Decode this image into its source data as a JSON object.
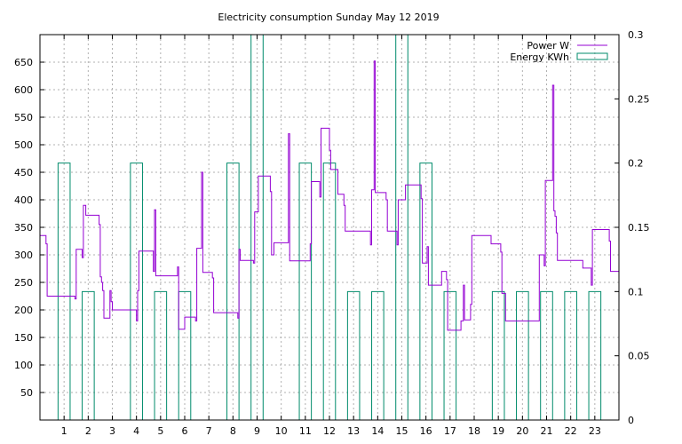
{
  "chart_data": {
    "type": "line",
    "title": "Electricity consumption Sunday May 12 2019",
    "xlabel": "",
    "ylabel": "",
    "xlim": [
      0,
      24
    ],
    "ylim": [
      0,
      700
    ],
    "y2lim": [
      0,
      0.3
    ],
    "grid": true,
    "legend_position": "top-right",
    "x_ticks": [
      1,
      2,
      3,
      4,
      5,
      6,
      7,
      8,
      9,
      10,
      11,
      12,
      13,
      14,
      15,
      16,
      17,
      18,
      19,
      20,
      21,
      22,
      23
    ],
    "y_ticks": [
      50,
      100,
      150,
      200,
      250,
      300,
      350,
      400,
      450,
      500,
      550,
      600,
      650
    ],
    "y2_ticks": [
      "0",
      "0.05",
      "0.1",
      "0.15",
      "0.2",
      "0.25",
      "0.3"
    ],
    "series": [
      {
        "name": "Power W",
        "axis": "left",
        "color": "#9400d3",
        "style": "steps",
        "points": [
          [
            0,
            335
          ],
          [
            0.25,
            335
          ],
          [
            0.25,
            320
          ],
          [
            0.3,
            320
          ],
          [
            0.3,
            225
          ],
          [
            1.45,
            225
          ],
          [
            1.45,
            220
          ],
          [
            1.5,
            220
          ],
          [
            1.5,
            310
          ],
          [
            1.75,
            310
          ],
          [
            1.75,
            295
          ],
          [
            1.8,
            295
          ],
          [
            1.8,
            390
          ],
          [
            1.9,
            390
          ],
          [
            1.9,
            372
          ],
          [
            2.45,
            372
          ],
          [
            2.45,
            355
          ],
          [
            2.5,
            355
          ],
          [
            2.5,
            260
          ],
          [
            2.55,
            260
          ],
          [
            2.55,
            250
          ],
          [
            2.6,
            250
          ],
          [
            2.6,
            235
          ],
          [
            2.65,
            235
          ],
          [
            2.65,
            185
          ],
          [
            2.9,
            185
          ],
          [
            2.9,
            235
          ],
          [
            2.95,
            235
          ],
          [
            2.95,
            215
          ],
          [
            3.0,
            215
          ],
          [
            3.0,
            200
          ],
          [
            4.0,
            200
          ],
          [
            4.0,
            180
          ],
          [
            4.05,
            180
          ],
          [
            4.05,
            235
          ],
          [
            4.1,
            235
          ],
          [
            4.1,
            307
          ],
          [
            4.7,
            307
          ],
          [
            4.7,
            270
          ],
          [
            4.75,
            270
          ],
          [
            4.75,
            382
          ],
          [
            4.8,
            382
          ],
          [
            4.8,
            262
          ],
          [
            5.7,
            262
          ],
          [
            5.7,
            278
          ],
          [
            5.75,
            278
          ],
          [
            5.75,
            165
          ],
          [
            6.0,
            165
          ],
          [
            6.0,
            187
          ],
          [
            6.45,
            187
          ],
          [
            6.45,
            180
          ],
          [
            6.5,
            180
          ],
          [
            6.5,
            312
          ],
          [
            6.7,
            312
          ],
          [
            6.7,
            450
          ],
          [
            6.75,
            450
          ],
          [
            6.75,
            268
          ],
          [
            7.15,
            268
          ],
          [
            7.15,
            258
          ],
          [
            7.2,
            258
          ],
          [
            7.2,
            195
          ],
          [
            8.2,
            195
          ],
          [
            8.2,
            185
          ],
          [
            8.25,
            185
          ],
          [
            8.25,
            310
          ],
          [
            8.3,
            310
          ],
          [
            8.3,
            290
          ],
          [
            8.85,
            290
          ],
          [
            8.85,
            285
          ],
          [
            8.9,
            285
          ],
          [
            8.9,
            378
          ],
          [
            9.05,
            378
          ],
          [
            9.05,
            443
          ],
          [
            9.55,
            443
          ],
          [
            9.55,
            415
          ],
          [
            9.6,
            415
          ],
          [
            9.6,
            300
          ],
          [
            9.7,
            300
          ],
          [
            9.7,
            322
          ],
          [
            10.3,
            322
          ],
          [
            10.3,
            520
          ],
          [
            10.35,
            520
          ],
          [
            10.35,
            289
          ],
          [
            11.2,
            289
          ],
          [
            11.2,
            320
          ],
          [
            11.25,
            320
          ],
          [
            11.25,
            433
          ],
          [
            11.6,
            433
          ],
          [
            11.6,
            405
          ],
          [
            11.65,
            405
          ],
          [
            11.65,
            530
          ],
          [
            12.0,
            530
          ],
          [
            12.0,
            490
          ],
          [
            12.05,
            490
          ],
          [
            12.05,
            455
          ],
          [
            12.35,
            455
          ],
          [
            12.35,
            410
          ],
          [
            12.6,
            410
          ],
          [
            12.6,
            390
          ],
          [
            12.65,
            390
          ],
          [
            12.65,
            343
          ],
          [
            13.7,
            343
          ],
          [
            13.7,
            318
          ],
          [
            13.75,
            318
          ],
          [
            13.75,
            418
          ],
          [
            13.85,
            418
          ],
          [
            13.85,
            652
          ],
          [
            13.9,
            652
          ],
          [
            13.9,
            413
          ],
          [
            14.35,
            413
          ],
          [
            14.35,
            400
          ],
          [
            14.4,
            400
          ],
          [
            14.4,
            343
          ],
          [
            14.8,
            343
          ],
          [
            14.8,
            318
          ],
          [
            14.85,
            318
          ],
          [
            14.85,
            400
          ],
          [
            15.15,
            400
          ],
          [
            15.15,
            427
          ],
          [
            15.8,
            427
          ],
          [
            15.8,
            402
          ],
          [
            15.85,
            402
          ],
          [
            15.85,
            285
          ],
          [
            16.05,
            285
          ],
          [
            16.05,
            315
          ],
          [
            16.1,
            315
          ],
          [
            16.1,
            245
          ],
          [
            16.65,
            245
          ],
          [
            16.65,
            270
          ],
          [
            16.85,
            270
          ],
          [
            16.85,
            255
          ],
          [
            16.9,
            255
          ],
          [
            16.9,
            163
          ],
          [
            17.45,
            163
          ],
          [
            17.45,
            180
          ],
          [
            17.55,
            180
          ],
          [
            17.55,
            245
          ],
          [
            17.6,
            245
          ],
          [
            17.6,
            182
          ],
          [
            17.85,
            182
          ],
          [
            17.85,
            210
          ],
          [
            17.9,
            210
          ],
          [
            17.9,
            335
          ],
          [
            18.7,
            335
          ],
          [
            18.7,
            320
          ],
          [
            19.1,
            320
          ],
          [
            19.1,
            305
          ],
          [
            19.15,
            305
          ],
          [
            19.15,
            230
          ],
          [
            19.3,
            230
          ],
          [
            19.3,
            180
          ],
          [
            20.7,
            180
          ],
          [
            20.7,
            300
          ],
          [
            20.9,
            300
          ],
          [
            20.9,
            280
          ],
          [
            20.95,
            280
          ],
          [
            20.95,
            435
          ],
          [
            21.25,
            435
          ],
          [
            21.25,
            608
          ],
          [
            21.3,
            608
          ],
          [
            21.3,
            380
          ],
          [
            21.35,
            380
          ],
          [
            21.35,
            370
          ],
          [
            21.4,
            370
          ],
          [
            21.4,
            340
          ],
          [
            21.45,
            340
          ],
          [
            21.45,
            290
          ],
          [
            22.5,
            290
          ],
          [
            22.5,
            276
          ],
          [
            22.85,
            276
          ],
          [
            22.85,
            245
          ],
          [
            22.9,
            245
          ],
          [
            22.9,
            346
          ],
          [
            23.6,
            346
          ],
          [
            23.6,
            325
          ],
          [
            23.65,
            325
          ],
          [
            23.65,
            270
          ],
          [
            24,
            270
          ]
        ]
      },
      {
        "name": "Energy KWh",
        "axis": "right",
        "color": "#008b6b",
        "style": "bars",
        "bars": [
          {
            "x0": 0.75,
            "x1": 1.25,
            "value": 0.2
          },
          {
            "x0": 1.75,
            "x1": 2.25,
            "value": 0.1
          },
          {
            "x0": 3.75,
            "x1": 4.25,
            "value": 0.2
          },
          {
            "x0": 4.75,
            "x1": 5.25,
            "value": 0.1
          },
          {
            "x0": 5.75,
            "x1": 6.25,
            "value": 0.1
          },
          {
            "x0": 7.75,
            "x1": 8.25,
            "value": 0.2
          },
          {
            "x0": 8.75,
            "x1": 9.25,
            "value": 0.3
          },
          {
            "x0": 10.75,
            "x1": 11.25,
            "value": 0.2
          },
          {
            "x0": 11.75,
            "x1": 12.25,
            "value": 0.2
          },
          {
            "x0": 12.75,
            "x1": 13.25,
            "value": 0.1
          },
          {
            "x0": 13.75,
            "x1": 14.25,
            "value": 0.1
          },
          {
            "x0": 14.75,
            "x1": 15.25,
            "value": 0.3
          },
          {
            "x0": 15.75,
            "x1": 16.25,
            "value": 0.2
          },
          {
            "x0": 16.75,
            "x1": 17.25,
            "value": 0.1
          },
          {
            "x0": 18.75,
            "x1": 19.25,
            "value": 0.1
          },
          {
            "x0": 19.75,
            "x1": 20.25,
            "value": 0.1
          },
          {
            "x0": 20.75,
            "x1": 21.25,
            "value": 0.1
          },
          {
            "x0": 21.75,
            "x1": 22.25,
            "value": 0.1
          },
          {
            "x0": 22.75,
            "x1": 23.25,
            "value": 0.1
          }
        ]
      }
    ]
  }
}
